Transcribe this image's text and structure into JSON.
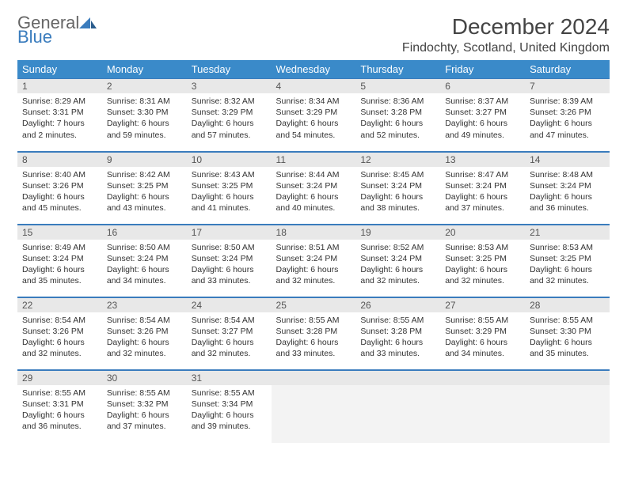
{
  "brand": {
    "text1": "General",
    "text2": "Blue"
  },
  "title": "December 2024",
  "location": "Findochty, Scotland, United Kingdom",
  "colors": {
    "header_bg": "#3a8ac9",
    "header_text": "#ffffff",
    "daynum_bg": "#e8e8e8",
    "border": "#3a7cbd",
    "logo_gray": "#666666",
    "logo_blue": "#3a7cbd",
    "body_text": "#333333"
  },
  "weekdays": [
    "Sunday",
    "Monday",
    "Tuesday",
    "Wednesday",
    "Thursday",
    "Friday",
    "Saturday"
  ],
  "weeks": [
    [
      {
        "n": "1",
        "sr": "Sunrise: 8:29 AM",
        "ss": "Sunset: 3:31 PM",
        "dl": "Daylight: 7 hours and 2 minutes."
      },
      {
        "n": "2",
        "sr": "Sunrise: 8:31 AM",
        "ss": "Sunset: 3:30 PM",
        "dl": "Daylight: 6 hours and 59 minutes."
      },
      {
        "n": "3",
        "sr": "Sunrise: 8:32 AM",
        "ss": "Sunset: 3:29 PM",
        "dl": "Daylight: 6 hours and 57 minutes."
      },
      {
        "n": "4",
        "sr": "Sunrise: 8:34 AM",
        "ss": "Sunset: 3:29 PM",
        "dl": "Daylight: 6 hours and 54 minutes."
      },
      {
        "n": "5",
        "sr": "Sunrise: 8:36 AM",
        "ss": "Sunset: 3:28 PM",
        "dl": "Daylight: 6 hours and 52 minutes."
      },
      {
        "n": "6",
        "sr": "Sunrise: 8:37 AM",
        "ss": "Sunset: 3:27 PM",
        "dl": "Daylight: 6 hours and 49 minutes."
      },
      {
        "n": "7",
        "sr": "Sunrise: 8:39 AM",
        "ss": "Sunset: 3:26 PM",
        "dl": "Daylight: 6 hours and 47 minutes."
      }
    ],
    [
      {
        "n": "8",
        "sr": "Sunrise: 8:40 AM",
        "ss": "Sunset: 3:26 PM",
        "dl": "Daylight: 6 hours and 45 minutes."
      },
      {
        "n": "9",
        "sr": "Sunrise: 8:42 AM",
        "ss": "Sunset: 3:25 PM",
        "dl": "Daylight: 6 hours and 43 minutes."
      },
      {
        "n": "10",
        "sr": "Sunrise: 8:43 AM",
        "ss": "Sunset: 3:25 PM",
        "dl": "Daylight: 6 hours and 41 minutes."
      },
      {
        "n": "11",
        "sr": "Sunrise: 8:44 AM",
        "ss": "Sunset: 3:24 PM",
        "dl": "Daylight: 6 hours and 40 minutes."
      },
      {
        "n": "12",
        "sr": "Sunrise: 8:45 AM",
        "ss": "Sunset: 3:24 PM",
        "dl": "Daylight: 6 hours and 38 minutes."
      },
      {
        "n": "13",
        "sr": "Sunrise: 8:47 AM",
        "ss": "Sunset: 3:24 PM",
        "dl": "Daylight: 6 hours and 37 minutes."
      },
      {
        "n": "14",
        "sr": "Sunrise: 8:48 AM",
        "ss": "Sunset: 3:24 PM",
        "dl": "Daylight: 6 hours and 36 minutes."
      }
    ],
    [
      {
        "n": "15",
        "sr": "Sunrise: 8:49 AM",
        "ss": "Sunset: 3:24 PM",
        "dl": "Daylight: 6 hours and 35 minutes."
      },
      {
        "n": "16",
        "sr": "Sunrise: 8:50 AM",
        "ss": "Sunset: 3:24 PM",
        "dl": "Daylight: 6 hours and 34 minutes."
      },
      {
        "n": "17",
        "sr": "Sunrise: 8:50 AM",
        "ss": "Sunset: 3:24 PM",
        "dl": "Daylight: 6 hours and 33 minutes."
      },
      {
        "n": "18",
        "sr": "Sunrise: 8:51 AM",
        "ss": "Sunset: 3:24 PM",
        "dl": "Daylight: 6 hours and 32 minutes."
      },
      {
        "n": "19",
        "sr": "Sunrise: 8:52 AM",
        "ss": "Sunset: 3:24 PM",
        "dl": "Daylight: 6 hours and 32 minutes."
      },
      {
        "n": "20",
        "sr": "Sunrise: 8:53 AM",
        "ss": "Sunset: 3:25 PM",
        "dl": "Daylight: 6 hours and 32 minutes."
      },
      {
        "n": "21",
        "sr": "Sunrise: 8:53 AM",
        "ss": "Sunset: 3:25 PM",
        "dl": "Daylight: 6 hours and 32 minutes."
      }
    ],
    [
      {
        "n": "22",
        "sr": "Sunrise: 8:54 AM",
        "ss": "Sunset: 3:26 PM",
        "dl": "Daylight: 6 hours and 32 minutes."
      },
      {
        "n": "23",
        "sr": "Sunrise: 8:54 AM",
        "ss": "Sunset: 3:26 PM",
        "dl": "Daylight: 6 hours and 32 minutes."
      },
      {
        "n": "24",
        "sr": "Sunrise: 8:54 AM",
        "ss": "Sunset: 3:27 PM",
        "dl": "Daylight: 6 hours and 32 minutes."
      },
      {
        "n": "25",
        "sr": "Sunrise: 8:55 AM",
        "ss": "Sunset: 3:28 PM",
        "dl": "Daylight: 6 hours and 33 minutes."
      },
      {
        "n": "26",
        "sr": "Sunrise: 8:55 AM",
        "ss": "Sunset: 3:28 PM",
        "dl": "Daylight: 6 hours and 33 minutes."
      },
      {
        "n": "27",
        "sr": "Sunrise: 8:55 AM",
        "ss": "Sunset: 3:29 PM",
        "dl": "Daylight: 6 hours and 34 minutes."
      },
      {
        "n": "28",
        "sr": "Sunrise: 8:55 AM",
        "ss": "Sunset: 3:30 PM",
        "dl": "Daylight: 6 hours and 35 minutes."
      }
    ],
    [
      {
        "n": "29",
        "sr": "Sunrise: 8:55 AM",
        "ss": "Sunset: 3:31 PM",
        "dl": "Daylight: 6 hours and 36 minutes."
      },
      {
        "n": "30",
        "sr": "Sunrise: 8:55 AM",
        "ss": "Sunset: 3:32 PM",
        "dl": "Daylight: 6 hours and 37 minutes."
      },
      {
        "n": "31",
        "sr": "Sunrise: 8:55 AM",
        "ss": "Sunset: 3:34 PM",
        "dl": "Daylight: 6 hours and 39 minutes."
      },
      null,
      null,
      null,
      null
    ]
  ]
}
